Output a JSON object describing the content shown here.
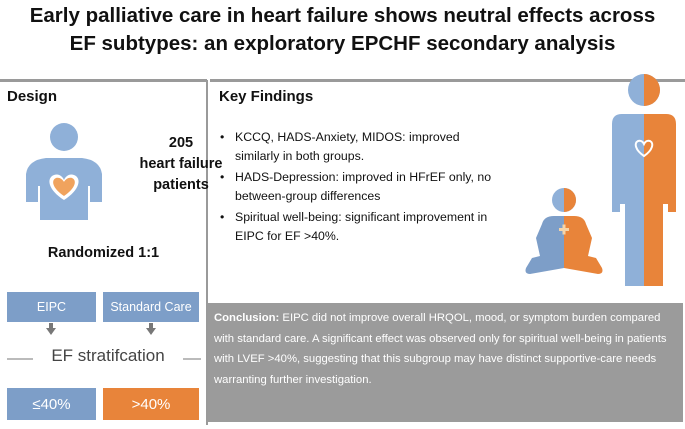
{
  "title": {
    "line1": "Early palliative care in heart failure shows neutral effects across",
    "line2": "EF subtypes: an exploratory EPCHF secondary analysis"
  },
  "design": {
    "heading": "Design",
    "patients_count": "205",
    "patients_line1": "heart failure",
    "patients_line2": "patients",
    "randomized": "Randomized 1:1",
    "arm_eipc": "EIPC",
    "arm_standard": "Standard Care",
    "stratification": "EF stratifcation",
    "ef_low": "≤40%",
    "ef_high": ">40%"
  },
  "key_findings": {
    "heading": "Key Findings",
    "items": [
      "KCCQ, HADS-Anxiety, MIDOS: improved similarly in both groups.",
      "HADS-Depression: improved in HFrEF only, no between-group differences",
      "Spiritual well-being: significant improvement in EIPC for EF >40%."
    ]
  },
  "conclusion": {
    "label": "Conclusion:",
    "text": " EIPC did not improve overall HRQOL, mood, or symptom burden compared with standard care. A significant effect was observed only for spiritual well-being in patients with LVEF >40%, suggesting that this subgroup may have distinct supportive-care needs warranting further investigation."
  },
  "colors": {
    "blue": "#7d9ec8",
    "orange": "#e8843a",
    "gray": "#9b9b9b"
  },
  "icons": [
    "person-heart-icon",
    "standing-figure-icon",
    "meditating-figure-icon"
  ]
}
